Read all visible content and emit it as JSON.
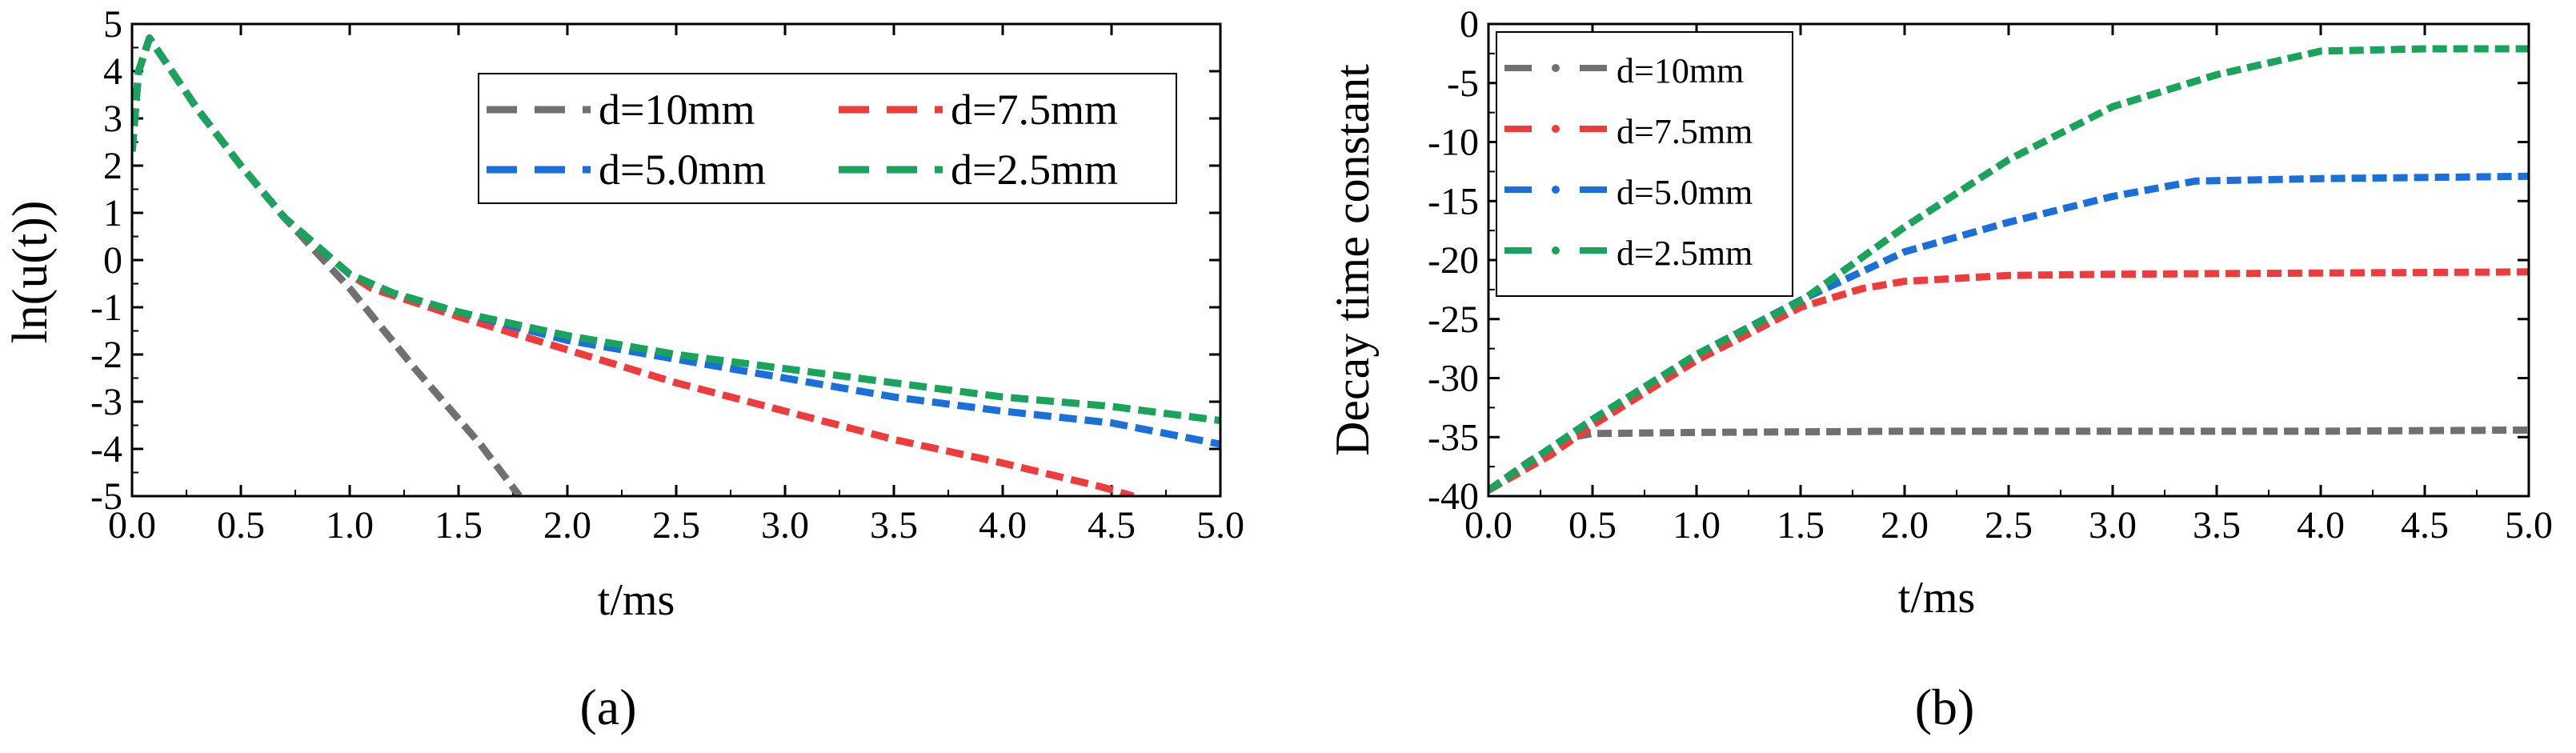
{
  "colors": {
    "d10": "#707070",
    "d75": "#ef3b3b",
    "d50": "#1b6fd9",
    "d25": "#1aa35b",
    "axis": "#000000",
    "background": "#ffffff"
  },
  "chart_data": [
    {
      "id": "a",
      "type": "line",
      "panel_label": "(a)",
      "xlabel": "t/ms",
      "ylabel": "ln(u(t))",
      "xlim": [
        0,
        5
      ],
      "ylim": [
        -5,
        5
      ],
      "xticks": [
        "0.0",
        "0.5",
        "1.0",
        "1.5",
        "2.0",
        "2.5",
        "3.0",
        "3.5",
        "4.0",
        "4.5",
        "5.0"
      ],
      "yticks": [
        "5",
        "4",
        "3",
        "2",
        "1",
        "0",
        "-1",
        "-2",
        "-3",
        "-4",
        "-5"
      ],
      "legend_position": "top-right",
      "legend_style": "dashed",
      "series": [
        {
          "name": "d=10mm",
          "color_key": "d10",
          "points": [
            [
              0,
              2.3
            ],
            [
              0.03,
              4.0
            ],
            [
              0.08,
              4.7
            ],
            [
              0.3,
              3.2
            ],
            [
              0.5,
              2.0
            ],
            [
              0.7,
              0.9
            ],
            [
              1.0,
              -0.6
            ],
            [
              1.3,
              -2.3
            ],
            [
              1.6,
              -3.9
            ],
            [
              1.78,
              -5.0
            ]
          ]
        },
        {
          "name": "d=7.5mm",
          "color_key": "d75",
          "points": [
            [
              0,
              2.3
            ],
            [
              0.03,
              4.0
            ],
            [
              0.08,
              4.7
            ],
            [
              0.3,
              3.2
            ],
            [
              0.5,
              2.0
            ],
            [
              0.7,
              0.9
            ],
            [
              1.0,
              -0.3
            ],
            [
              1.1,
              -0.6
            ],
            [
              1.5,
              -1.2
            ],
            [
              2.0,
              -1.9
            ],
            [
              2.5,
              -2.6
            ],
            [
              3.0,
              -3.2
            ],
            [
              3.5,
              -3.8
            ],
            [
              4.0,
              -4.3
            ],
            [
              4.45,
              -4.8
            ],
            [
              4.6,
              -5.0
            ]
          ]
        },
        {
          "name": "d=5.0mm",
          "color_key": "d50",
          "points": [
            [
              0,
              2.3
            ],
            [
              0.03,
              4.0
            ],
            [
              0.08,
              4.7
            ],
            [
              0.3,
              3.2
            ],
            [
              0.5,
              2.0
            ],
            [
              0.7,
              0.9
            ],
            [
              1.0,
              -0.3
            ],
            [
              1.2,
              -0.7
            ],
            [
              1.5,
              -1.1
            ],
            [
              2.0,
              -1.7
            ],
            [
              2.5,
              -2.1
            ],
            [
              3.0,
              -2.5
            ],
            [
              3.5,
              -2.9
            ],
            [
              4.0,
              -3.2
            ],
            [
              4.5,
              -3.45
            ],
            [
              5.0,
              -3.9
            ]
          ]
        },
        {
          "name": "d=2.5mm",
          "color_key": "d25",
          "points": [
            [
              0,
              2.3
            ],
            [
              0.03,
              4.0
            ],
            [
              0.08,
              4.7
            ],
            [
              0.3,
              3.2
            ],
            [
              0.5,
              2.0
            ],
            [
              0.7,
              0.9
            ],
            [
              1.0,
              -0.3
            ],
            [
              1.2,
              -0.7
            ],
            [
              1.5,
              -1.1
            ],
            [
              2.0,
              -1.6
            ],
            [
              2.5,
              -2.0
            ],
            [
              3.0,
              -2.3
            ],
            [
              3.5,
              -2.6
            ],
            [
              4.0,
              -2.9
            ],
            [
              4.5,
              -3.1
            ],
            [
              5.0,
              -3.4
            ]
          ]
        }
      ]
    },
    {
      "id": "b",
      "type": "line",
      "panel_label": "(b)",
      "xlabel": "t/ms",
      "ylabel": "Decay time constant",
      "xlim": [
        0,
        5
      ],
      "ylim": [
        -40,
        0
      ],
      "xticks": [
        "0.0",
        "0.5",
        "1.0",
        "1.5",
        "2.0",
        "2.5",
        "3.0",
        "3.5",
        "4.0",
        "4.5",
        "5.0"
      ],
      "yticks": [
        "0",
        "-5",
        "-10",
        "-15",
        "-20",
        "-25",
        "-30",
        "-35",
        "-40"
      ],
      "legend_position": "top-left",
      "legend_style": "dotted",
      "series": [
        {
          "name": "d=10mm",
          "color_key": "d10",
          "points": [
            [
              0,
              -39.5
            ],
            [
              0.2,
              -37
            ],
            [
              0.4,
              -35
            ],
            [
              0.5,
              -34.7
            ],
            [
              1.0,
              -34.6
            ],
            [
              2.0,
              -34.5
            ],
            [
              3.0,
              -34.5
            ],
            [
              4.0,
              -34.5
            ],
            [
              5.0,
              -34.4
            ]
          ]
        },
        {
          "name": "d=7.5mm",
          "color_key": "d75",
          "points": [
            [
              0,
              -39.5
            ],
            [
              0.3,
              -36.5
            ],
            [
              0.5,
              -34
            ],
            [
              1.0,
              -28.5
            ],
            [
              1.5,
              -24
            ],
            [
              1.8,
              -22.4
            ],
            [
              2.0,
              -21.8
            ],
            [
              2.5,
              -21.3
            ],
            [
              3.0,
              -21.2
            ],
            [
              4.0,
              -21.1
            ],
            [
              5.0,
              -21.0
            ]
          ]
        },
        {
          "name": "d=5.0mm",
          "color_key": "d50",
          "points": [
            [
              0,
              -39.5
            ],
            [
              0.5,
              -33.5
            ],
            [
              1.0,
              -28
            ],
            [
              1.5,
              -23.4
            ],
            [
              2.0,
              -19.3
            ],
            [
              2.5,
              -16.8
            ],
            [
              3.0,
              -14.6
            ],
            [
              3.4,
              -13.3
            ],
            [
              4.0,
              -13.1
            ],
            [
              5.0,
              -12.9
            ]
          ]
        },
        {
          "name": "d=2.5mm",
          "color_key": "d25",
          "points": [
            [
              0,
              -39.5
            ],
            [
              0.5,
              -33.5
            ],
            [
              1.0,
              -28
            ],
            [
              1.5,
              -23.5
            ],
            [
              2.0,
              -17.2
            ],
            [
              2.5,
              -11.5
            ],
            [
              3.0,
              -7.0
            ],
            [
              3.5,
              -4.3
            ],
            [
              4.0,
              -2.3
            ],
            [
              4.5,
              -2.1
            ],
            [
              5.0,
              -2.1
            ]
          ]
        }
      ]
    }
  ]
}
